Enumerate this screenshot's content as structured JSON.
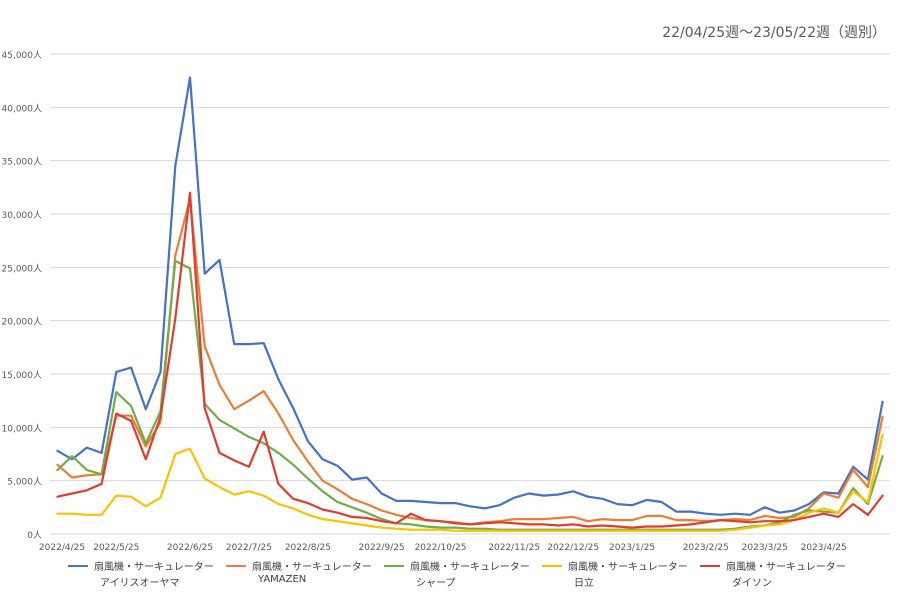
{
  "subtitle": "22/04/25週～23/05/22週（週別）",
  "colors": {
    "grid": "#d9d9d9",
    "axis_text": "#595959"
  },
  "chart_data": {
    "type": "line",
    "title": "",
    "xlabel": "",
    "ylabel": "",
    "ylim": [
      0,
      45000
    ],
    "y_ticks": [
      "0人",
      "5,000人",
      "10,000人",
      "15,000人",
      "20,000人",
      "25,000人",
      "30,000人",
      "35,000人",
      "40,000人",
      "45,000人"
    ],
    "x_tick_labels": [
      "2022/4/25",
      "2022/5/25",
      "2022/6/25",
      "2022/7/25",
      "2022/8/25",
      "2022/9/25",
      "2022/10/25",
      "2022/11/25",
      "2022/12/25",
      "2023/1/25",
      "2023/2/25",
      "2023/3/25",
      "2023/4/25"
    ],
    "grid": true,
    "legend_position": "bottom",
    "x": [
      "2022-04-25",
      "2022-05-02",
      "2022-05-09",
      "2022-05-16",
      "2022-05-23",
      "2022-05-30",
      "2022-06-06",
      "2022-06-13",
      "2022-06-20",
      "2022-06-27",
      "2022-07-04",
      "2022-07-11",
      "2022-07-18",
      "2022-07-25",
      "2022-08-01",
      "2022-08-08",
      "2022-08-15",
      "2022-08-22",
      "2022-08-29",
      "2022-09-05",
      "2022-09-12",
      "2022-09-19",
      "2022-09-26",
      "2022-10-03",
      "2022-10-10",
      "2022-10-17",
      "2022-10-24",
      "2022-10-31",
      "2022-11-07",
      "2022-11-14",
      "2022-11-21",
      "2022-11-28",
      "2022-12-05",
      "2022-12-12",
      "2022-12-19",
      "2022-12-26",
      "2023-01-02",
      "2023-01-09",
      "2023-01-16",
      "2023-01-23",
      "2023-01-30",
      "2023-02-06",
      "2023-02-13",
      "2023-02-20",
      "2023-02-27",
      "2023-03-06",
      "2023-03-13",
      "2023-03-20",
      "2023-03-27",
      "2023-04-03",
      "2023-04-10",
      "2023-04-17",
      "2023-04-24",
      "2023-05-01",
      "2023-05-08",
      "2023-05-15",
      "2023-05-22"
    ],
    "series": [
      {
        "name_line1": "扇風機・サーキュレーター",
        "name_line2": "アイリスオーヤマ",
        "color": "#4472c4",
        "values": [
          7800,
          7000,
          8100,
          7600,
          15200,
          15600,
          11700,
          15200,
          34500,
          42800,
          24400,
          25700,
          17800,
          17800,
          17900,
          14500,
          11800,
          8700,
          7000,
          6400,
          5100,
          5300,
          3800,
          3100,
          3100,
          3000,
          2900,
          2900,
          2600,
          2400,
          2700,
          3400,
          3800,
          3600,
          3700,
          4000,
          3500,
          3300,
          2800,
          2700,
          3200,
          3000,
          2100,
          2100,
          1900,
          1800,
          1900,
          1800,
          2500,
          2000,
          2200,
          2800,
          3900,
          3800,
          6300,
          5100,
          12400
        ]
      },
      {
        "name_line1": "扇風機・サーキュレーター",
        "name_line2": "YAMAZEN",
        "color": "#ed7d31",
        "values": [
          6500,
          5300,
          5500,
          5600,
          11100,
          11100,
          8200,
          10500,
          26100,
          31400,
          17600,
          14000,
          11700,
          12500,
          13400,
          11300,
          8800,
          6800,
          5000,
          4200,
          3300,
          2800,
          2200,
          1800,
          1500,
          1300,
          1200,
          1100,
          900,
          1100,
          1200,
          1400,
          1400,
          1400,
          1500,
          1600,
          1200,
          1400,
          1300,
          1300,
          1700,
          1700,
          1300,
          1300,
          1200,
          1300,
          1400,
          1300,
          1700,
          1500,
          1600,
          2400,
          3800,
          3400,
          6000,
          4400,
          11000
        ]
      },
      {
        "name_line1": "扇風機・サーキュレーター",
        "name_line2": "シャープ",
        "color": "#70ad47",
        "values": [
          6000,
          7300,
          6000,
          5600,
          13300,
          12000,
          8500,
          11500,
          25600,
          24900,
          12200,
          10700,
          9900,
          9100,
          8500,
          7600,
          6500,
          5200,
          4000,
          3000,
          2500,
          2000,
          1400,
          1000,
          900,
          700,
          600,
          600,
          500,
          500,
          400,
          400,
          400,
          400,
          400,
          400,
          400,
          400,
          400,
          400,
          400,
          400,
          400,
          400,
          400,
          400,
          500,
          700,
          800,
          1100,
          1800,
          2200,
          2100,
          2000,
          4300,
          2800,
          7300
        ]
      },
      {
        "name_line1": "扇風機・サーキュレーター",
        "name_line2": "日立",
        "color": "#ffc000",
        "values": [
          1900,
          1900,
          1800,
          1800,
          3600,
          3500,
          2600,
          3400,
          7500,
          8000,
          5200,
          4400,
          3700,
          4000,
          3600,
          2800,
          2400,
          1800,
          1400,
          1200,
          1000,
          800,
          600,
          500,
          400,
          400,
          400,
          300,
          300,
          300,
          300,
          300,
          300,
          300,
          300,
          300,
          300,
          300,
          300,
          300,
          300,
          300,
          300,
          300,
          300,
          300,
          400,
          600,
          800,
          900,
          1300,
          2000,
          2400,
          2000,
          4000,
          3000,
          9300
        ]
      },
      {
        "name_line1": "扇風機・サーキュレーター",
        "name_line2": "ダイソン",
        "color": "#e03c31",
        "values": [
          3500,
          3800,
          4100,
          4700,
          11300,
          10600,
          7000,
          11000,
          20200,
          32000,
          11800,
          7600,
          6900,
          6300,
          9600,
          4700,
          3300,
          2900,
          2300,
          2000,
          1600,
          1500,
          1200,
          1000,
          1900,
          1300,
          1200,
          1000,
          900,
          1000,
          1100,
          1000,
          900,
          900,
          800,
          900,
          700,
          800,
          700,
          600,
          700,
          700,
          800,
          900,
          1100,
          1300,
          1200,
          1100,
          1200,
          1200,
          1300,
          1600,
          1900,
          1600,
          2800,
          1800,
          3600
        ]
      }
    ]
  }
}
